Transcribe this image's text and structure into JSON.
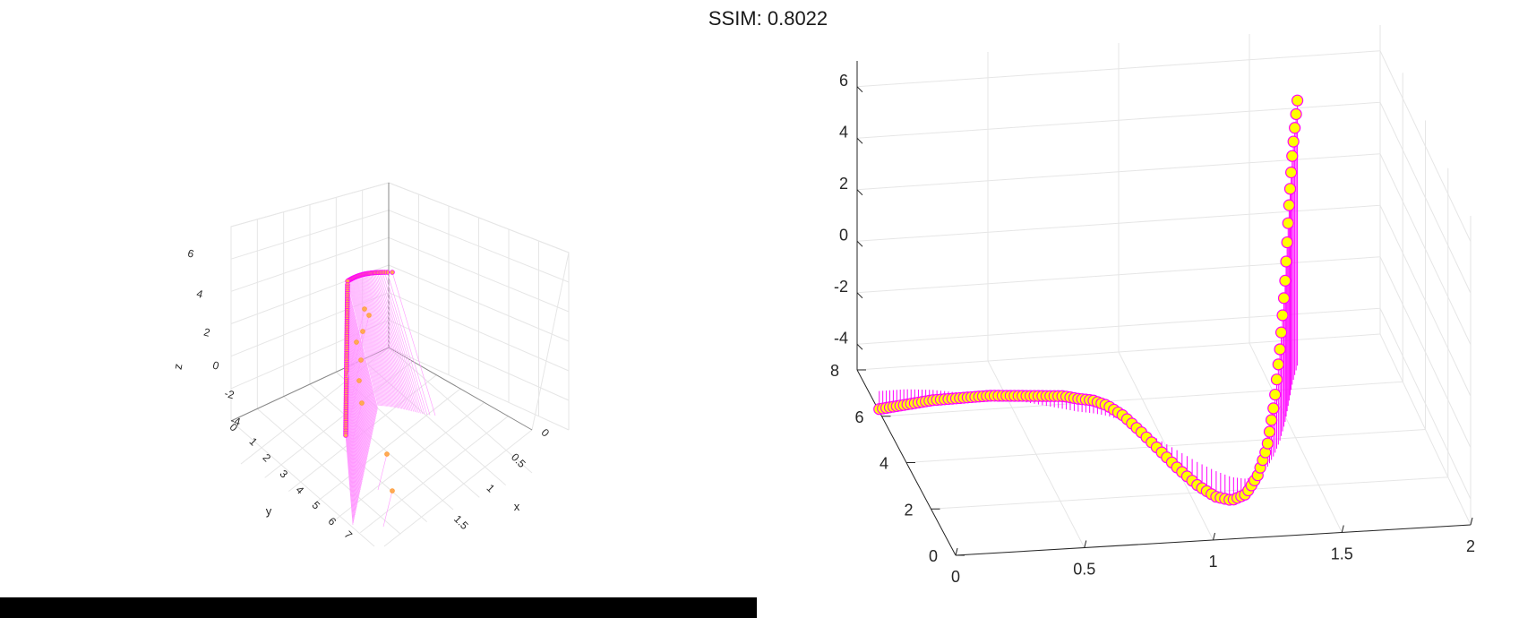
{
  "header": {
    "title": "SSIM: 0.8022"
  },
  "colors": {
    "stem": "#ff00ff",
    "marker_fill": "#ffff00",
    "marker_edge": "#ff00ff",
    "grid": "#e6e6e6",
    "axis": "#262626"
  },
  "chart_data": [
    {
      "type": "scatter",
      "subtype": "stem3",
      "view": "rotated 3D view",
      "xlabel": "x",
      "ylabel": "y",
      "zlabel": "z",
      "x_ticks": [
        "0",
        "0.5",
        "1",
        "1.5"
      ],
      "y_ticks": [
        "0",
        "1",
        "2",
        "3",
        "4",
        "5",
        "6",
        "7"
      ],
      "z_ticks": [
        "6",
        "4",
        "2",
        "0",
        "-2",
        "-4"
      ],
      "xlim": [
        0,
        2
      ],
      "ylim": [
        0,
        8
      ],
      "zlim": [
        -5,
        7
      ],
      "grid": true,
      "series": [
        {
          "x": [
            0,
            2
          ],
          "y": [
            2.5,
            4.8
          ],
          "z_base": -5,
          "note_points": 120
        }
      ]
    },
    {
      "type": "scatter",
      "subtype": "stem3",
      "view": "perspective 3D view",
      "x_ticks": [
        "0",
        "0.5",
        "1",
        "1.5",
        "2"
      ],
      "y_ticks": [
        "0",
        "2",
        "4",
        "6",
        "8"
      ],
      "z_ticks": [
        "6",
        "4",
        "2",
        "0",
        "-2",
        "-4"
      ],
      "xlim": [
        0,
        2
      ],
      "ylim": [
        0,
        8
      ],
      "zlim": [
        -5,
        7
      ],
      "grid": true,
      "series": [
        {
          "x": [
            0.0,
            0.05,
            0.1,
            0.15,
            0.2,
            0.25,
            0.3,
            0.35,
            0.4,
            0.45,
            0.5,
            0.55,
            0.6,
            0.65,
            0.7,
            0.75,
            0.8,
            0.85,
            0.9,
            0.95,
            1.0,
            1.05,
            1.1,
            1.15,
            1.2,
            1.25,
            1.3,
            1.35,
            1.4,
            1.45,
            1.5,
            1.55,
            1.6
          ],
          "y": [
            6.2,
            6.2,
            6.2,
            6.15,
            6.1,
            6.0,
            5.9,
            5.8,
            5.7,
            5.55,
            5.4,
            5.25,
            5.1,
            4.95,
            4.8,
            4.7,
            4.55,
            4.3,
            3.9,
            3.4,
            2.9,
            2.4,
            2.0,
            1.7,
            1.6,
            1.7,
            2.0,
            2.5,
            3.1,
            3.8,
            4.6,
            5.4,
            6.1
          ],
          "z": [
            -4.9,
            -4.85,
            -4.8,
            -4.7,
            -4.6,
            -4.5,
            -4.4,
            -4.3,
            -4.2,
            -4.1,
            -4.0,
            -3.9,
            -3.8,
            -3.7,
            -3.7,
            -3.7,
            -3.8,
            -4.0,
            -4.3,
            -4.6,
            -4.9,
            -5.1,
            -5.2,
            -5.1,
            -4.8,
            -4.2,
            -3.4,
            -2.2,
            -0.6,
            1.2,
            3.2,
            4.8,
            6.1
          ]
        }
      ]
    }
  ]
}
